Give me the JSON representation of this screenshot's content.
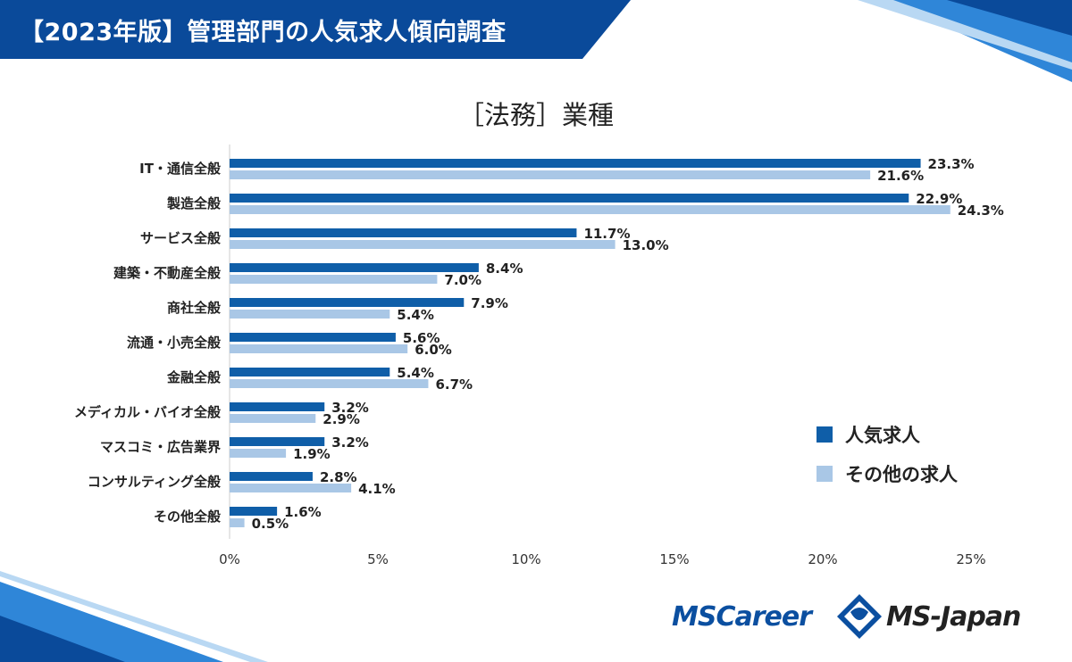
{
  "header": {
    "title": "【2023年版】管理部門の人気求人傾向調査"
  },
  "colors": {
    "series_popular": "#0f5ea8",
    "series_other": "#a9c7e6",
    "banner": "#0a4a9a",
    "axis": "#cccccc"
  },
  "chart_data": {
    "type": "bar",
    "orientation": "horizontal",
    "title": "［法務］業種",
    "categories": [
      "IT・通信全般",
      "製造全般",
      "サービス全般",
      "建築・不動産全般",
      "商社全般",
      "流通・小売全般",
      "金融全般",
      "メディカル・バイオ全般",
      "マスコミ・広告業界",
      "コンサルティング全般",
      "その他全般"
    ],
    "series": [
      {
        "name": "人気求人",
        "values": [
          23.3,
          22.9,
          11.7,
          8.4,
          7.9,
          5.6,
          5.4,
          3.2,
          3.2,
          2.8,
          1.6
        ],
        "labels": [
          "23.3%",
          "22.9%",
          "11.7%",
          "8.4%",
          "7.9%",
          "5.6%",
          "5.4%",
          "3.2%",
          "3.2%",
          "2.8%",
          "1.6%"
        ]
      },
      {
        "name": "その他の求人",
        "values": [
          21.6,
          24.3,
          13.0,
          7.0,
          5.4,
          6.0,
          6.7,
          2.9,
          1.9,
          4.1,
          0.5
        ],
        "labels": [
          "21.6%",
          "24.3%",
          "13.0%",
          "7.0%",
          "5.4%",
          "6.0%",
          "6.7%",
          "2.9%",
          "1.9%",
          "4.1%",
          "0.5%"
        ]
      }
    ],
    "xlim": [
      0,
      25
    ],
    "xticks": [
      "0%",
      "5%",
      "10%",
      "15%",
      "20%",
      "25%"
    ],
    "grid": false,
    "legend_position": "right"
  },
  "logos": {
    "left": "MSCareer",
    "right": "MS-Japan"
  }
}
